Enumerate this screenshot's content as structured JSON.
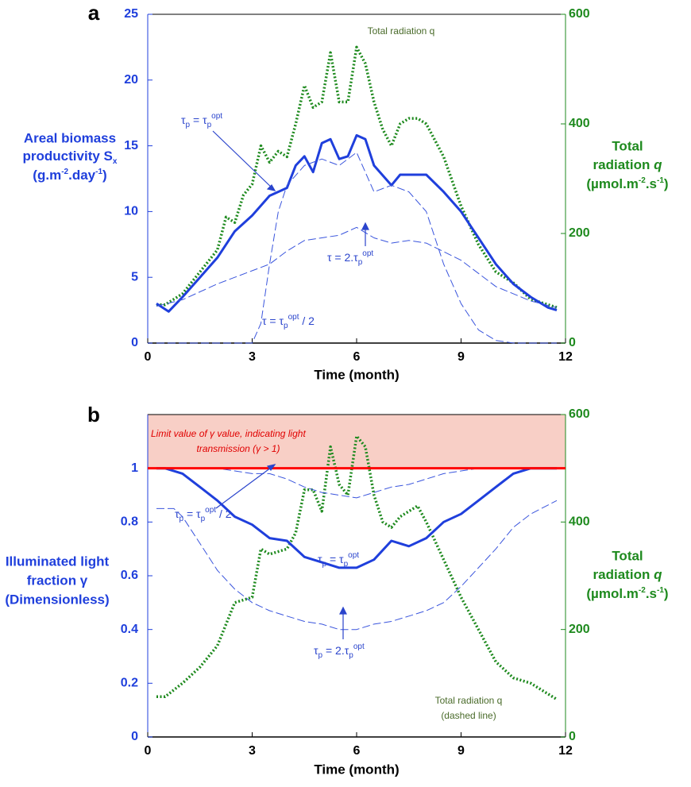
{
  "chart_data": [
    {
      "type": "line",
      "panel_label": "a",
      "xlabel": "Time (month)",
      "ylabel": [
        "Areal biomass",
        "productivity S",
        "x",
        "(g.m",
        "-2",
        ".day",
        "-1",
        ")"
      ],
      "y2label": [
        "Total",
        "radiation ",
        "q",
        "(µmol.m",
        "-2",
        ".s",
        "-1",
        ")"
      ],
      "xlim": [
        0,
        12
      ],
      "xticks": [
        0,
        3,
        6,
        9,
        12
      ],
      "ylim": [
        0,
        25
      ],
      "yticks": [
        0,
        5,
        10,
        15,
        20,
        25
      ],
      "y2lim": [
        0,
        600
      ],
      "y2ticks": [
        0,
        200,
        400,
        600
      ],
      "axis_color": "#1f3fdc",
      "axis2_color": "#1e8a1e",
      "annotations": [
        {
          "parts": [
            "Total radiation q"
          ]
        },
        {
          "parts": [
            "τ",
            "p",
            " = τ",
            "p",
            "opt"
          ]
        },
        {
          "parts": [
            "τ = 2.τ",
            "p",
            "opt"
          ]
        },
        {
          "parts": [
            "τ = τ",
            "p",
            "opt",
            " / 2"
          ]
        }
      ],
      "series": [
        {
          "color": "#1e8a1e",
          "axis": "y2",
          "style": "dotted",
          "width": 3.5,
          "x": [
            0.25,
            0.5,
            1,
            1.5,
            2,
            2.25,
            2.5,
            2.75,
            3,
            3.25,
            3.5,
            3.75,
            4,
            4.25,
            4.5,
            4.75,
            5,
            5.25,
            5.5,
            5.75,
            6,
            6.25,
            6.5,
            6.75,
            7,
            7.25,
            7.5,
            7.75,
            8,
            8.5,
            9,
            9.5,
            10,
            10.5,
            11,
            11.5,
            11.75
          ],
          "values": [
            70,
            70,
            90,
            130,
            170,
            230,
            220,
            270,
            290,
            360,
            330,
            350,
            340,
            400,
            470,
            430,
            440,
            530,
            440,
            440,
            540,
            510,
            440,
            390,
            360,
            400,
            410,
            410,
            400,
            340,
            250,
            180,
            130,
            110,
            80,
            70,
            65
          ]
        },
        {
          "color": "#1f3fdc",
          "axis": "y",
          "style": "solid",
          "width": 3,
          "x": [
            0.25,
            0.6,
            1,
            1.5,
            2,
            2.5,
            3,
            3.5,
            4,
            4.25,
            4.5,
            4.75,
            5,
            5.25,
            5.5,
            5.75,
            6,
            6.25,
            6.5,
            7,
            7.25,
            7.5,
            8,
            8.5,
            9,
            9.5,
            10,
            10.5,
            11,
            11.5,
            11.75
          ],
          "values": [
            3,
            2.4,
            3.5,
            5,
            6.5,
            8.5,
            9.7,
            11.2,
            11.8,
            13.5,
            14.2,
            13,
            15.2,
            15.5,
            14,
            14.2,
            15.8,
            15.5,
            13.5,
            12,
            12.8,
            12.8,
            12.8,
            11.5,
            10,
            8,
            6,
            4.5,
            3.5,
            2.7,
            2.5
          ]
        },
        {
          "color": "#3a55dd",
          "axis": "y",
          "style": "dashed",
          "width": 1,
          "x": [
            0.25,
            1,
            2,
            2.5,
            3,
            3.5,
            4,
            4.5,
            5,
            5.5,
            6,
            6.5,
            7,
            7.5,
            8,
            9,
            10,
            11,
            11.75
          ],
          "values": [
            2.8,
            3.3,
            4.5,
            5,
            5.5,
            6,
            7,
            7.8,
            8,
            8.2,
            8.8,
            8,
            7.6,
            7.8,
            7.6,
            6.3,
            4.3,
            3.2,
            2.7
          ]
        },
        {
          "color": "#3a55dd",
          "axis": "y",
          "style": "dashed",
          "width": 1,
          "x": [
            0.25,
            3,
            3.25,
            3.5,
            3.75,
            4,
            4.5,
            5,
            5.5,
            6,
            6.5,
            7,
            7.5,
            8,
            8.5,
            9,
            9.5,
            10,
            10.5,
            11.75
          ],
          "values": [
            0,
            0,
            1.5,
            6,
            10,
            12,
            13.5,
            14,
            13.5,
            14.5,
            11.5,
            12,
            11.5,
            10,
            6,
            3,
            1,
            0.2,
            0,
            0
          ]
        }
      ]
    },
    {
      "type": "line",
      "panel_label": "b",
      "xlabel": "Time (month)",
      "ylabel": [
        "Illuminated light",
        "fraction γ",
        "(Dimensionless)"
      ],
      "y2label": [
        "Total",
        "radiation ",
        "q",
        "(µmol.m",
        "-2",
        ".s",
        "-1",
        ")"
      ],
      "xlim": [
        0,
        12
      ],
      "xticks": [
        0,
        3,
        6,
        9,
        12
      ],
      "ylim": [
        0,
        1.2
      ],
      "yticks": [
        0,
        0.2,
        0.4,
        0.6,
        0.8,
        1
      ],
      "y2lim": [
        0,
        600
      ],
      "y2ticks": [
        0,
        200,
        400,
        600
      ],
      "axis_color": "#1f3fdc",
      "axis2_color": "#1e8a1e",
      "highlight": {
        "from": 1,
        "to": 1.2,
        "color": "#f8cfc6",
        "edge": "#e05a4a"
      },
      "threshold": {
        "value": 1,
        "color": "#ff0000"
      },
      "annotations": [
        {
          "parts": [
            "Limit value of γ value, indicating light"
          ]
        },
        {
          "parts": [
            "transmission (γ > 1)"
          ]
        },
        {
          "parts": [
            "τ",
            "p",
            " = τ",
            "p",
            "opt",
            " / 2"
          ]
        },
        {
          "parts": [
            "τ",
            "p",
            " = τ",
            "p",
            "opt"
          ]
        },
        {
          "parts": [
            "τ",
            "p",
            " = 2.τ",
            "p",
            "opt"
          ]
        },
        {
          "parts": [
            "Total radiation q"
          ]
        },
        {
          "parts": [
            "(dashed line)"
          ]
        }
      ],
      "series": [
        {
          "color": "#1e8a1e",
          "axis": "y2",
          "style": "dotted",
          "width": 3.5,
          "x": [
            0.25,
            0.5,
            1,
            1.5,
            2,
            2.5,
            3,
            3.25,
            3.5,
            4,
            4.25,
            4.5,
            4.75,
            5,
            5.25,
            5.5,
            5.75,
            6,
            6.25,
            6.5,
            6.75,
            7,
            7.25,
            7.5,
            7.75,
            8,
            8.5,
            9,
            9.5,
            10,
            10.5,
            11,
            11.5,
            11.75
          ],
          "values": [
            75,
            75,
            100,
            130,
            170,
            250,
            260,
            350,
            340,
            350,
            380,
            460,
            460,
            420,
            540,
            470,
            450,
            560,
            540,
            450,
            400,
            390,
            410,
            420,
            430,
            400,
            330,
            260,
            200,
            140,
            110,
            100,
            80,
            70
          ]
        },
        {
          "color": "#1f3fdc",
          "axis": "y",
          "style": "solid",
          "width": 3,
          "x": [
            0.25,
            0.5,
            1,
            1.5,
            2,
            2.5,
            3,
            3.5,
            4,
            4.5,
            5,
            5.5,
            6,
            6.5,
            7,
            7.5,
            8,
            8.5,
            9,
            9.5,
            10,
            10.5,
            11,
            11.75
          ],
          "values": [
            1,
            1,
            0.98,
            0.93,
            0.88,
            0.82,
            0.79,
            0.74,
            0.73,
            0.67,
            0.65,
            0.63,
            0.63,
            0.66,
            0.73,
            0.71,
            0.74,
            0.8,
            0.83,
            0.88,
            0.93,
            0.98,
            1,
            1
          ]
        },
        {
          "color": "#3a55dd",
          "axis": "y",
          "style": "dashed",
          "width": 1,
          "x": [
            0.25,
            1,
            2,
            2.5,
            3,
            3.5,
            4,
            4.5,
            5,
            5.5,
            6,
            6.5,
            7,
            7.5,
            8,
            8.5,
            9,
            9.5,
            11.75
          ],
          "values": [
            1,
            1,
            1,
            0.99,
            0.98,
            0.98,
            0.96,
            0.93,
            0.91,
            0.9,
            0.89,
            0.91,
            0.93,
            0.94,
            0.96,
            0.98,
            0.99,
            1,
            1
          ]
        },
        {
          "color": "#3a55dd",
          "axis": "y",
          "style": "dashed",
          "width": 1,
          "x": [
            0.25,
            0.75,
            1,
            1.5,
            2,
            2.5,
            3,
            3.5,
            4,
            4.5,
            5,
            5.5,
            6,
            6.5,
            7,
            7.5,
            8,
            8.5,
            9,
            9.5,
            10,
            10.5,
            11,
            11.75
          ],
          "values": [
            0.85,
            0.85,
            0.82,
            0.72,
            0.62,
            0.55,
            0.5,
            0.47,
            0.45,
            0.43,
            0.42,
            0.4,
            0.4,
            0.42,
            0.43,
            0.45,
            0.47,
            0.5,
            0.56,
            0.63,
            0.7,
            0.78,
            0.83,
            0.88
          ]
        }
      ]
    }
  ]
}
